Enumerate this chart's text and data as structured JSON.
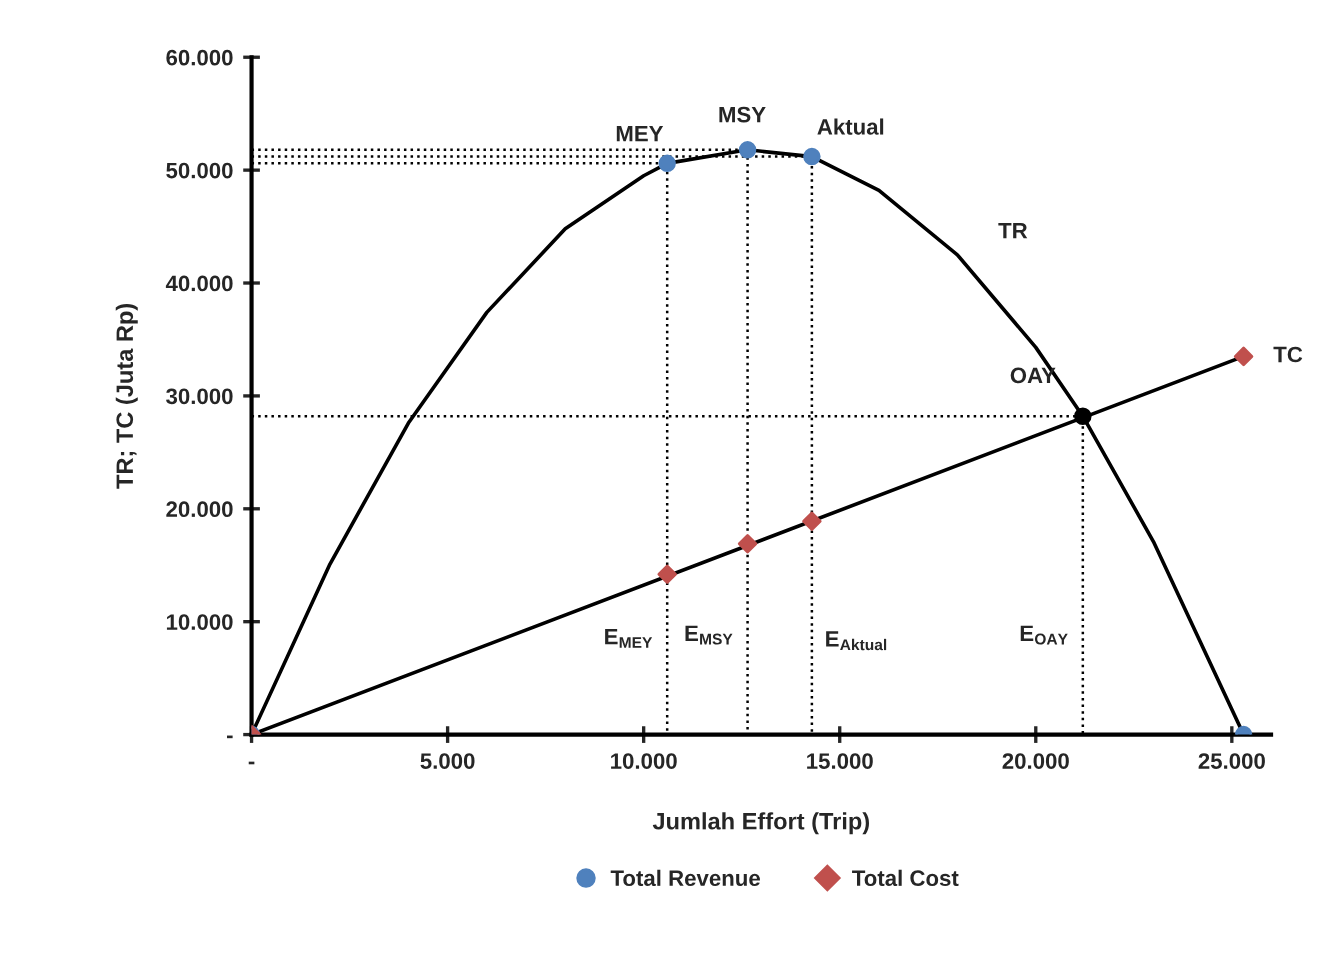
{
  "chart_data": {
    "type": "line",
    "xlabel": "Jumlah Effort (Trip)",
    "ylabel": "TR; TC (Juta Rp)",
    "xlim": [
      0,
      26000
    ],
    "ylim": [
      0,
      60000
    ],
    "xticks": [
      {
        "value": 0,
        "label": "-"
      },
      {
        "value": 5000,
        "label": "5.000"
      },
      {
        "value": 10000,
        "label": "10.000"
      },
      {
        "value": 15000,
        "label": "15.000"
      },
      {
        "value": 20000,
        "label": "20.000"
      },
      {
        "value": 25000,
        "label": "25.000"
      }
    ],
    "yticks": [
      {
        "value": 0,
        "label": "-"
      },
      {
        "value": 10000,
        "label": "10.000"
      },
      {
        "value": 20000,
        "label": "20.000"
      },
      {
        "value": 30000,
        "label": "30.000"
      },
      {
        "value": 40000,
        "label": "40.000"
      },
      {
        "value": 50000,
        "label": "50.000"
      },
      {
        "value": 60000,
        "label": "60.000"
      }
    ],
    "grid": false,
    "legend": "bottom",
    "series": [
      {
        "color": "#000000",
        "line_style": "dotted",
        "x": [
          0,
          10600,
          10600
        ],
        "values": [
          50600,
          50600,
          0
        ]
      },
      {
        "color": "#000000",
        "line_style": "dotted",
        "x": [
          0,
          12650,
          12650
        ],
        "values": [
          51800,
          51800,
          0
        ]
      },
      {
        "color": "#000000",
        "line_style": "dotted",
        "x": [
          0,
          14290,
          14290
        ],
        "values": [
          51200,
          51200,
          0
        ]
      },
      {
        "color": "#000000",
        "line_style": "dotted",
        "x": [
          0,
          21200,
          21200
        ],
        "values": [
          28200,
          28200,
          0
        ]
      },
      {
        "color": "#000000",
        "line_style": "solid",
        "x": [
          0,
          2000,
          4000,
          6000,
          8000,
          10000,
          10600,
          12650,
          14290,
          16000,
          18000,
          20000,
          21200,
          23000,
          25300
        ],
        "values": [
          0,
          15100,
          27600,
          37400,
          44800,
          49500,
          50600,
          51800,
          51200,
          48200,
          42500,
          34300,
          28200,
          17100,
          0
        ]
      },
      {
        "color": "#000000",
        "line_style": "solid",
        "x": [
          0,
          25300
        ],
        "values": [
          0,
          33500
        ]
      },
      {
        "type": "scatter",
        "name": "Total Revenue",
        "color": "#4f81bd",
        "marker": "circle",
        "x": [
          0,
          10600,
          12650,
          14290,
          25300
        ],
        "values": [
          0,
          50600,
          51800,
          51200,
          0
        ]
      },
      {
        "type": "scatter",
        "name": "Total Cost",
        "color": "#c0504d",
        "marker": "diamond",
        "x": [
          0,
          10600,
          12650,
          14290,
          25300
        ],
        "values": [
          0,
          14200,
          16900,
          18900,
          33500
        ]
      },
      {
        "type": "scatter",
        "color": "#000000",
        "marker": "circle",
        "x": [
          21200
        ],
        "values": [
          28200
        ]
      }
    ],
    "annotations": [
      {
        "text": "MEY",
        "x": 10600,
        "y": 50600
      },
      {
        "text": "MSY",
        "x": 12650,
        "y": 51800
      },
      {
        "text": "Aktual",
        "x": 14290,
        "y": 51200
      },
      {
        "text": "TR",
        "x": 18000,
        "y": 42500
      },
      {
        "text": "OAY",
        "x": 21200,
        "y": 28200
      },
      {
        "text": "TC",
        "x": 25300,
        "y": 33500
      },
      {
        "text": "E$_{MEY}$",
        "x": 10600,
        "y": 8500
      },
      {
        "text": "E$_{MSY}$",
        "x": 12650,
        "y": 8800
      },
      {
        "text": "E$_{Aktual}$",
        "x": 14290,
        "y": 8300
      },
      {
        "text": "E$_{OAY}$",
        "x": 21200,
        "y": 8800
      }
    ]
  }
}
